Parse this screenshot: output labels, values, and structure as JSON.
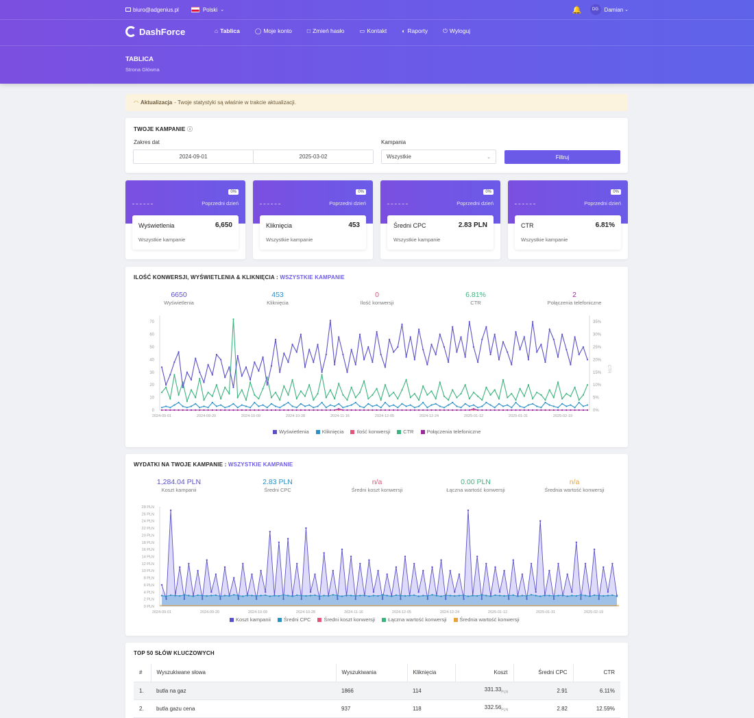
{
  "topbar": {
    "email": "biuro@adgenius.pl",
    "language": "Polski",
    "user_initials": "DG",
    "user_name": "Damian"
  },
  "brand": {
    "name": "DashForce"
  },
  "nav": [
    {
      "icon": "home-icon",
      "label": "Tablica"
    },
    {
      "icon": "user-icon",
      "label": "Moje konto"
    },
    {
      "icon": "lock-icon",
      "label": "Zmień hasło"
    },
    {
      "icon": "monitor-icon",
      "label": "Kontakt"
    },
    {
      "icon": "report-icon",
      "label": "Raporty"
    },
    {
      "icon": "power-icon",
      "label": "Wyloguj"
    }
  ],
  "page": {
    "title": "TABLICA",
    "breadcrumb": "Strona Główna"
  },
  "alert": {
    "strong": "Aktualizacja",
    "text": "- Twoje statystyki są właśnie w trakcie aktualizacji."
  },
  "filters": {
    "title": "TWOJE KAMPANIE",
    "date_label": "Zakres dat",
    "date_from": "2024-09-01",
    "date_to": "2025-03-02",
    "campaign_label": "Kampania",
    "campaign_value": "Wszystkie",
    "button": "Filtruj"
  },
  "kpis": [
    {
      "badge": "0%",
      "prev": "Poprzedni dzień",
      "name": "Wyświetlenia",
      "value": "6,650",
      "sub": "Wszystkie kampanie"
    },
    {
      "badge": "0%",
      "prev": "Poprzedni dzień",
      "name": "Kliknięcia",
      "value": "453",
      "sub": "Wszystkie kampanie"
    },
    {
      "badge": "0%",
      "prev": "Poprzedni dzień",
      "name": "Średni CPC",
      "value": "2.83 PLN",
      "sub": "Wszystkie kampanie"
    },
    {
      "badge": "0%",
      "prev": "Poprzedni dzień",
      "name": "CTR",
      "value": "6.81%",
      "sub": "Wszystkie kampanie"
    }
  ],
  "conv_card": {
    "title": "ILOŚĆ KONWERSJI, WYŚWIETLENIA & KLIKNIĘCIA :",
    "title_accent": "WSZYSTKIE KAMPANIE",
    "stats": [
      {
        "value": "6650",
        "label": "Wyświetlenia",
        "color": "#5a4fc8"
      },
      {
        "value": "453",
        "label": "Kliknięcia",
        "color": "#2a8fc7"
      },
      {
        "value": "0",
        "label": "Ilość konwersji",
        "color": "#e0567a"
      },
      {
        "value": "6.81%",
        "label": "CTR",
        "color": "#3bb37d"
      },
      {
        "value": "2",
        "label": "Połączenia telefoniczne",
        "color": "#9c2a9c"
      }
    ]
  },
  "spend_card": {
    "title": "WYDATKI NA TWOJE KAMPANIE :",
    "title_accent": "WSZYSTKIE KAMPANIE",
    "stats": [
      {
        "value": "1,284.04 PLN",
        "label": "Koszt kampanii",
        "color": "#5a4fc8"
      },
      {
        "value": "2.83 PLN",
        "label": "Średni CPC",
        "color": "#2a8fc7"
      },
      {
        "value": "n/a",
        "label": "Średni koszt konwersji",
        "color": "#e0567a"
      },
      {
        "value": "0.00 PLN",
        "label": "Łączna wartość konwersji",
        "color": "#3bb37d"
      },
      {
        "value": "n/a",
        "label": "Średnia wartość konwersji",
        "color": "#e8a23a"
      }
    ]
  },
  "chart_data": [
    {
      "type": "line",
      "x_ticks": [
        "2024-09-01",
        "2024-09-20",
        "2024-10-09",
        "2024-10-28",
        "2024-11-16",
        "2024-12-05",
        "2024-12-24",
        "2025-01-12",
        "2025-01-31",
        "2025-02-19"
      ],
      "y_ticks": [
        0,
        10,
        20,
        30,
        40,
        50,
        60,
        70
      ],
      "ylim": [
        0,
        75
      ],
      "y2_ticks": [
        "0%",
        "5%",
        "10%",
        "15%",
        "20%",
        "25%",
        "30%",
        "35%"
      ],
      "y2label": "CTR",
      "series": [
        {
          "name": "Wyświetlenia",
          "color": "#5a4fc8",
          "values": [
            34,
            20,
            28,
            38,
            46,
            18,
            30,
            24,
            41,
            30,
            22,
            36,
            28,
            44,
            40,
            26,
            34,
            18,
            43,
            27,
            34,
            24,
            38,
            31,
            42,
            20,
            35,
            56,
            30,
            45,
            38,
            52,
            46,
            60,
            34,
            48,
            38,
            52,
            30,
            44,
            71,
            36,
            58,
            44,
            30,
            48,
            36,
            60,
            40,
            50,
            38,
            62,
            44,
            34,
            56,
            46,
            50,
            68,
            42,
            58,
            40,
            64,
            48,
            36,
            52,
            44,
            60,
            50,
            38,
            66,
            46,
            58,
            42,
            70,
            50,
            38,
            56,
            66,
            44,
            60,
            40,
            54,
            46,
            36,
            62,
            48,
            58,
            40,
            70,
            46,
            52,
            38,
            64,
            56,
            42,
            60,
            48,
            36,
            58,
            44,
            50,
            40
          ]
        },
        {
          "name": "Kliknięcia",
          "color": "#2a8fc7",
          "values": [
            2,
            3,
            2,
            4,
            6,
            3,
            2,
            3,
            5,
            2,
            3,
            2,
            6,
            3,
            4,
            2,
            3,
            5,
            2,
            4,
            3,
            2,
            6,
            3,
            4,
            2,
            5,
            3,
            2,
            4,
            6,
            3,
            2,
            5,
            3,
            4,
            2,
            3,
            6,
            2,
            4,
            3,
            5,
            2,
            3,
            4,
            6,
            3,
            2,
            5,
            3,
            4,
            2,
            6,
            3,
            4,
            2,
            5,
            3,
            4,
            2,
            3,
            6,
            2,
            4,
            5,
            3,
            2,
            4,
            6,
            3,
            2,
            5,
            3,
            4,
            2,
            3,
            6,
            4,
            2,
            5,
            3,
            4,
            2,
            6,
            3,
            2,
            4,
            5,
            3,
            2,
            6,
            4,
            3,
            2,
            5,
            3,
            4,
            2,
            6,
            3,
            4
          ]
        },
        {
          "name": "Ilość konwersji",
          "color": "#e0567a",
          "values": [
            0,
            0,
            0,
            0,
            0,
            0,
            0,
            0,
            0,
            0,
            0,
            0,
            0,
            0,
            0,
            0,
            0,
            0,
            0,
            0,
            0,
            0,
            0,
            0,
            0,
            0,
            0,
            0,
            0,
            0,
            0,
            0,
            0,
            0,
            0,
            0,
            0,
            0,
            0,
            0,
            0,
            0,
            0,
            0,
            0,
            0,
            0,
            0,
            0,
            0,
            0,
            0,
            0,
            0,
            0,
            0,
            0,
            0,
            0,
            0,
            0,
            0,
            0,
            0,
            0,
            0,
            0,
            0,
            0,
            0,
            0,
            0,
            0,
            0,
            0,
            0,
            0,
            0,
            0,
            0,
            0,
            0,
            0,
            0,
            0,
            0,
            0,
            0,
            0,
            0,
            0,
            0,
            0,
            0,
            0,
            0,
            0,
            0,
            0,
            0,
            0,
            0
          ]
        },
        {
          "name": "CTR",
          "color": "#3bb37d",
          "values": [
            14,
            18,
            9,
            28,
            12,
            22,
            7,
            16,
            10,
            25,
            8,
            14,
            11,
            20,
            9,
            18,
            13,
            72,
            10,
            16,
            8,
            22,
            12,
            9,
            17,
            26,
            10,
            14,
            8,
            19,
            12,
            24,
            9,
            15,
            11,
            20,
            8,
            13,
            28,
            10,
            16,
            9,
            21,
            12,
            8,
            18,
            10,
            14,
            23,
            9,
            12,
            17,
            8,
            20,
            11,
            14,
            9,
            16,
            24,
            10,
            13,
            8,
            19,
            12,
            15,
            9,
            22,
            11,
            8,
            16,
            10,
            13,
            20,
            9,
            14,
            11,
            8,
            18,
            12,
            16,
            9,
            24,
            10,
            13,
            8,
            17,
            11,
            20,
            9,
            14,
            12,
            8,
            16,
            10,
            22,
            9,
            13,
            11,
            18,
            8,
            12,
            20
          ]
        },
        {
          "name": "Połączenia telefoniczne",
          "color": "#9c2a9c",
          "values": [
            0,
            0,
            0,
            0,
            0,
            0,
            0,
            0,
            0,
            0,
            0,
            0,
            0,
            0,
            0,
            0,
            0,
            0,
            0,
            0,
            0,
            0,
            0,
            0,
            0,
            0,
            0,
            0,
            0,
            0,
            0,
            0,
            0,
            0,
            0,
            0,
            0,
            0,
            0,
            0,
            0,
            0,
            1,
            0,
            0,
            0,
            0,
            0,
            0,
            0,
            0,
            0,
            0,
            0,
            0,
            0,
            0,
            0,
            0,
            0,
            0,
            0,
            0,
            0,
            0,
            0,
            0,
            0,
            0,
            0,
            0,
            0,
            0,
            0,
            1,
            0,
            0,
            0,
            0,
            0,
            0,
            0,
            0,
            0,
            0,
            0,
            0,
            0,
            0,
            0,
            0,
            0,
            0,
            0,
            0,
            0,
            0,
            0,
            0,
            0,
            0,
            0
          ]
        }
      ]
    },
    {
      "type": "area",
      "x_ticks": [
        "2024-09-01",
        "2024-09-20",
        "2024-10-09",
        "2024-10-28",
        "2024-11-16",
        "2024-12-05",
        "2024-12-24",
        "2025-01-12",
        "2025-01-31",
        "2025-02-19"
      ],
      "y_ticks": [
        "0 PLN",
        "2 PLN",
        "4 PLN",
        "6 PLN",
        "8 PLN",
        "10 PLN",
        "12 PLN",
        "14 PLN",
        "16 PLN",
        "18 PLN",
        "20 PLN",
        "22 PLN",
        "24 PLN",
        "26 PLN",
        "28 PLN"
      ],
      "ylim": [
        0,
        28
      ],
      "series": [
        {
          "name": "Koszt kampanii",
          "color": "#5a4fc8",
          "values": [
            6,
            2,
            27,
            3,
            11,
            2,
            12,
            3,
            10,
            2,
            13,
            4,
            9,
            2,
            11,
            3,
            8,
            2,
            12,
            3,
            9,
            2,
            10,
            4,
            21,
            3,
            18,
            2,
            19,
            3,
            12,
            2,
            22,
            4,
            9,
            2,
            15,
            3,
            10,
            2,
            16,
            3,
            14,
            2,
            12,
            3,
            13,
            4,
            10,
            2,
            9,
            3,
            11,
            2,
            14,
            3,
            12,
            4,
            10,
            2,
            11,
            3,
            13,
            2,
            10,
            4,
            9,
            2,
            27,
            3,
            14,
            2,
            12,
            3,
            11,
            4,
            10,
            2,
            13,
            3,
            9,
            2,
            12,
            4,
            24,
            3,
            10,
            2,
            12,
            3,
            9,
            4,
            18,
            2,
            12,
            3,
            16,
            2,
            11,
            4,
            12,
            3
          ]
        },
        {
          "name": "Średni CPC",
          "color": "#2a8fc7",
          "values": [
            3,
            2.8,
            3.1,
            3,
            2.9,
            3.2,
            3,
            2.8,
            3.1,
            3,
            2.9,
            3,
            3.1,
            2.8,
            3,
            2.9,
            3.2,
            3,
            2.8,
            3.1,
            3,
            2.9,
            3,
            3.1,
            2.8,
            3,
            2.9,
            3.2,
            3,
            2.8,
            3.1,
            3,
            2.9,
            3,
            3.1,
            2.8,
            3,
            2.9,
            3.2,
            3,
            2.8,
            3.1,
            3,
            2.9,
            3,
            3.1,
            2.8,
            3,
            2.9,
            3.2,
            3,
            2.8,
            3.1,
            3,
            2.9,
            3,
            3.1,
            2.8,
            3,
            2.9,
            3.2,
            3,
            2.8,
            3.1,
            3,
            2.9,
            3,
            3.1,
            2.8,
            3,
            2.9,
            3.2,
            3,
            2.8,
            3.1,
            3,
            2.9,
            3,
            3.1,
            2.8,
            3,
            2.9,
            3.2,
            3,
            2.8,
            3.1,
            3,
            2.9,
            3,
            3.1,
            2.8,
            3,
            2.9,
            3.2,
            3,
            2.8,
            3.1,
            3,
            2.9,
            3,
            3.1,
            2.8
          ]
        },
        {
          "name": "Średni koszt konwersji",
          "color": "#e0567a",
          "values": []
        },
        {
          "name": "Łączna wartość konwersji",
          "color": "#3bb37d",
          "values": []
        },
        {
          "name": "Średnia wartość konwersji",
          "color": "#e8a23a",
          "values": []
        }
      ]
    }
  ],
  "keywords": {
    "title": "TOP 50 SŁÓW KLUCZOWYCH",
    "headers": [
      "#",
      "Wyszukiwane słowa",
      "Wyszukiwania",
      "Kliknięcia",
      "Koszt",
      "Średni CPC",
      "CTR"
    ],
    "currency": "PLN",
    "rows": [
      {
        "n": "1.",
        "kw": "butla na gaz",
        "s": "1866",
        "c": "114",
        "cost": "331.33",
        "cpc": "2.91",
        "ctr": "6.11%"
      },
      {
        "n": "2.",
        "kw": "butla gazu cena",
        "s": "937",
        "c": "118",
        "cost": "332.56",
        "cpc": "2.82",
        "ctr": "12.59%"
      }
    ]
  }
}
